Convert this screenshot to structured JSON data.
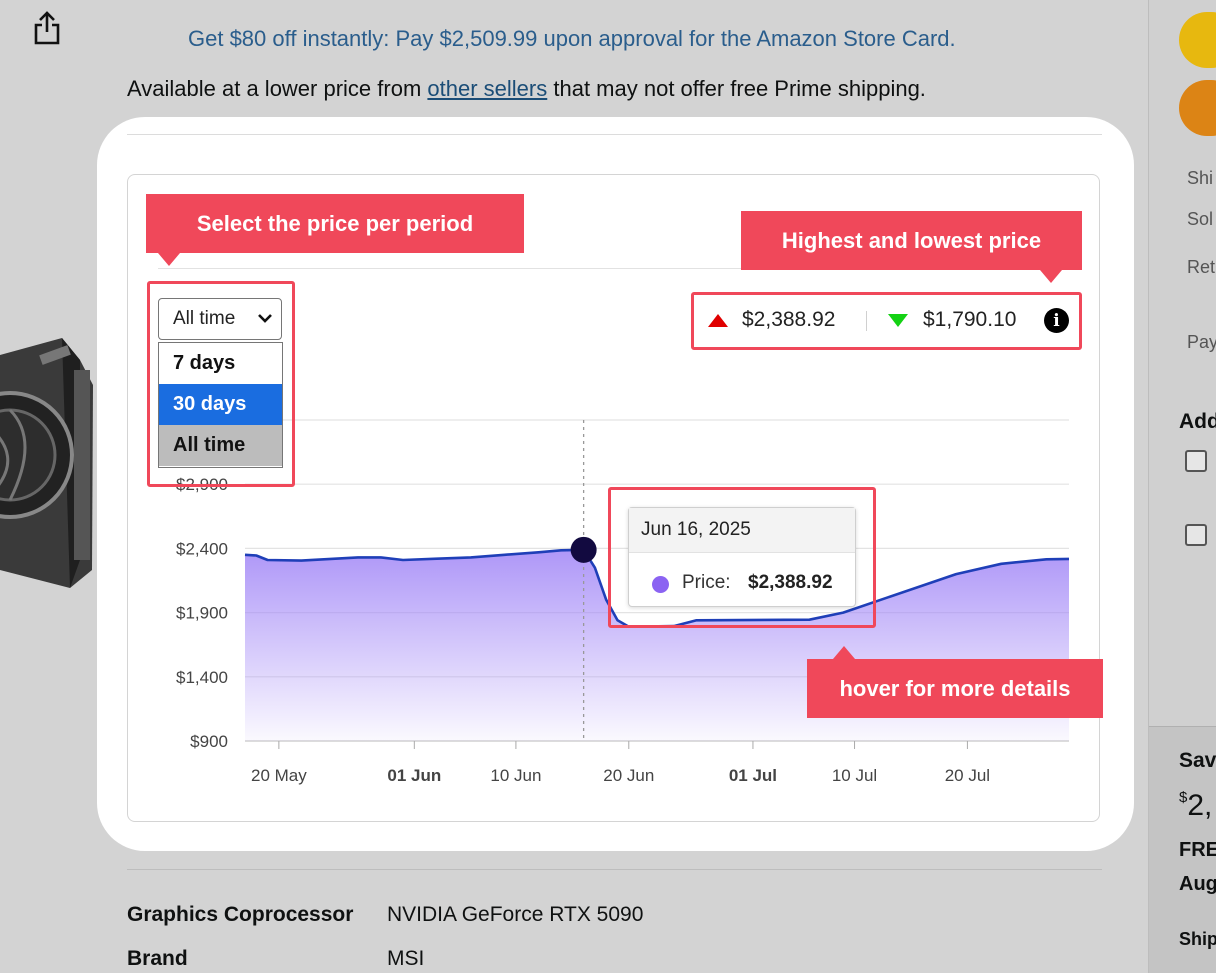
{
  "promo_text": "Get $80 off instantly: Pay $2,509.99 upon approval for the Amazon Store Card.",
  "availability": {
    "prefix": "Available at a lower price from ",
    "link_text": "other sellers",
    "suffix": " that may not offer free Prime shipping."
  },
  "callouts": {
    "select_period": "Select the price per period",
    "high_low": "Highest and lowest price",
    "hover": "hover for more details"
  },
  "period_select": {
    "value": "All time",
    "options": [
      "7 days",
      "30 days",
      "All time"
    ]
  },
  "price_range": {
    "highest": "$2,388.92",
    "lowest": "$1,790.10"
  },
  "tooltip": {
    "date": "Jun 16, 2025",
    "label": "Price:",
    "value": "$2,388.92"
  },
  "chart_data": {
    "type": "area",
    "x_tick_labels": [
      "20 May",
      "01 Jun",
      "10 Jun",
      "20 Jun",
      "01 Jul",
      "10 Jul",
      "20 Jul"
    ],
    "x_tick_bold": [
      false,
      true,
      false,
      false,
      true,
      false,
      false
    ],
    "y_tick_labels": [
      "$900",
      "$1,400",
      "$1,900",
      "$2,400",
      "$2,900"
    ],
    "ylim": [
      900,
      3400
    ],
    "series": [
      {
        "points": [
          [
            "2025-05-17",
            2350
          ],
          [
            "2025-05-18",
            2345
          ],
          [
            "2025-05-19",
            2310
          ],
          [
            "2025-05-22",
            2305
          ],
          [
            "2025-05-27",
            2330
          ],
          [
            "2025-05-29",
            2330
          ],
          [
            "2025-05-31",
            2310
          ],
          [
            "2025-06-03",
            2320
          ],
          [
            "2025-06-06",
            2330
          ],
          [
            "2025-06-09",
            2350
          ],
          [
            "2025-06-12",
            2370
          ],
          [
            "2025-06-14",
            2385
          ],
          [
            "2025-06-16",
            2388.92
          ],
          [
            "2025-06-17",
            2250
          ],
          [
            "2025-06-18",
            2000
          ],
          [
            "2025-06-19",
            1840
          ],
          [
            "2025-06-20",
            1790.1
          ],
          [
            "2025-06-24",
            1795
          ],
          [
            "2025-06-26",
            1840
          ],
          [
            "2025-07-06",
            1845
          ],
          [
            "2025-07-09",
            1900
          ],
          [
            "2025-07-13",
            2020
          ],
          [
            "2025-07-19",
            2200
          ],
          [
            "2025-07-23",
            2280
          ],
          [
            "2025-07-27",
            2315
          ],
          [
            "2025-07-29",
            2318
          ]
        ]
      }
    ],
    "hover_date": "2025-06-16",
    "line_color": "#1f3fb8",
    "fill_color": "#a58bf7",
    "grid": true
  },
  "specs": [
    {
      "key": "Graphics Coprocessor",
      "value": "NVIDIA GeForce RTX 5090"
    },
    {
      "key": "Brand",
      "value": "MSI"
    }
  ],
  "right_col": {
    "texts": [
      "Shi",
      "Sol",
      "Ret",
      "Pay"
    ],
    "add_heading": "Add",
    "save_heading": "Sav",
    "price_partial": "2,",
    "price_sup": "$",
    "free_text": "FRE",
    "aug_text": "Aug",
    "ship_text": "Ship"
  },
  "colors": {
    "accent_red": "#f0485a",
    "up": "#e00000",
    "down": "#14d214",
    "select_highlight": "#1a6de0"
  }
}
